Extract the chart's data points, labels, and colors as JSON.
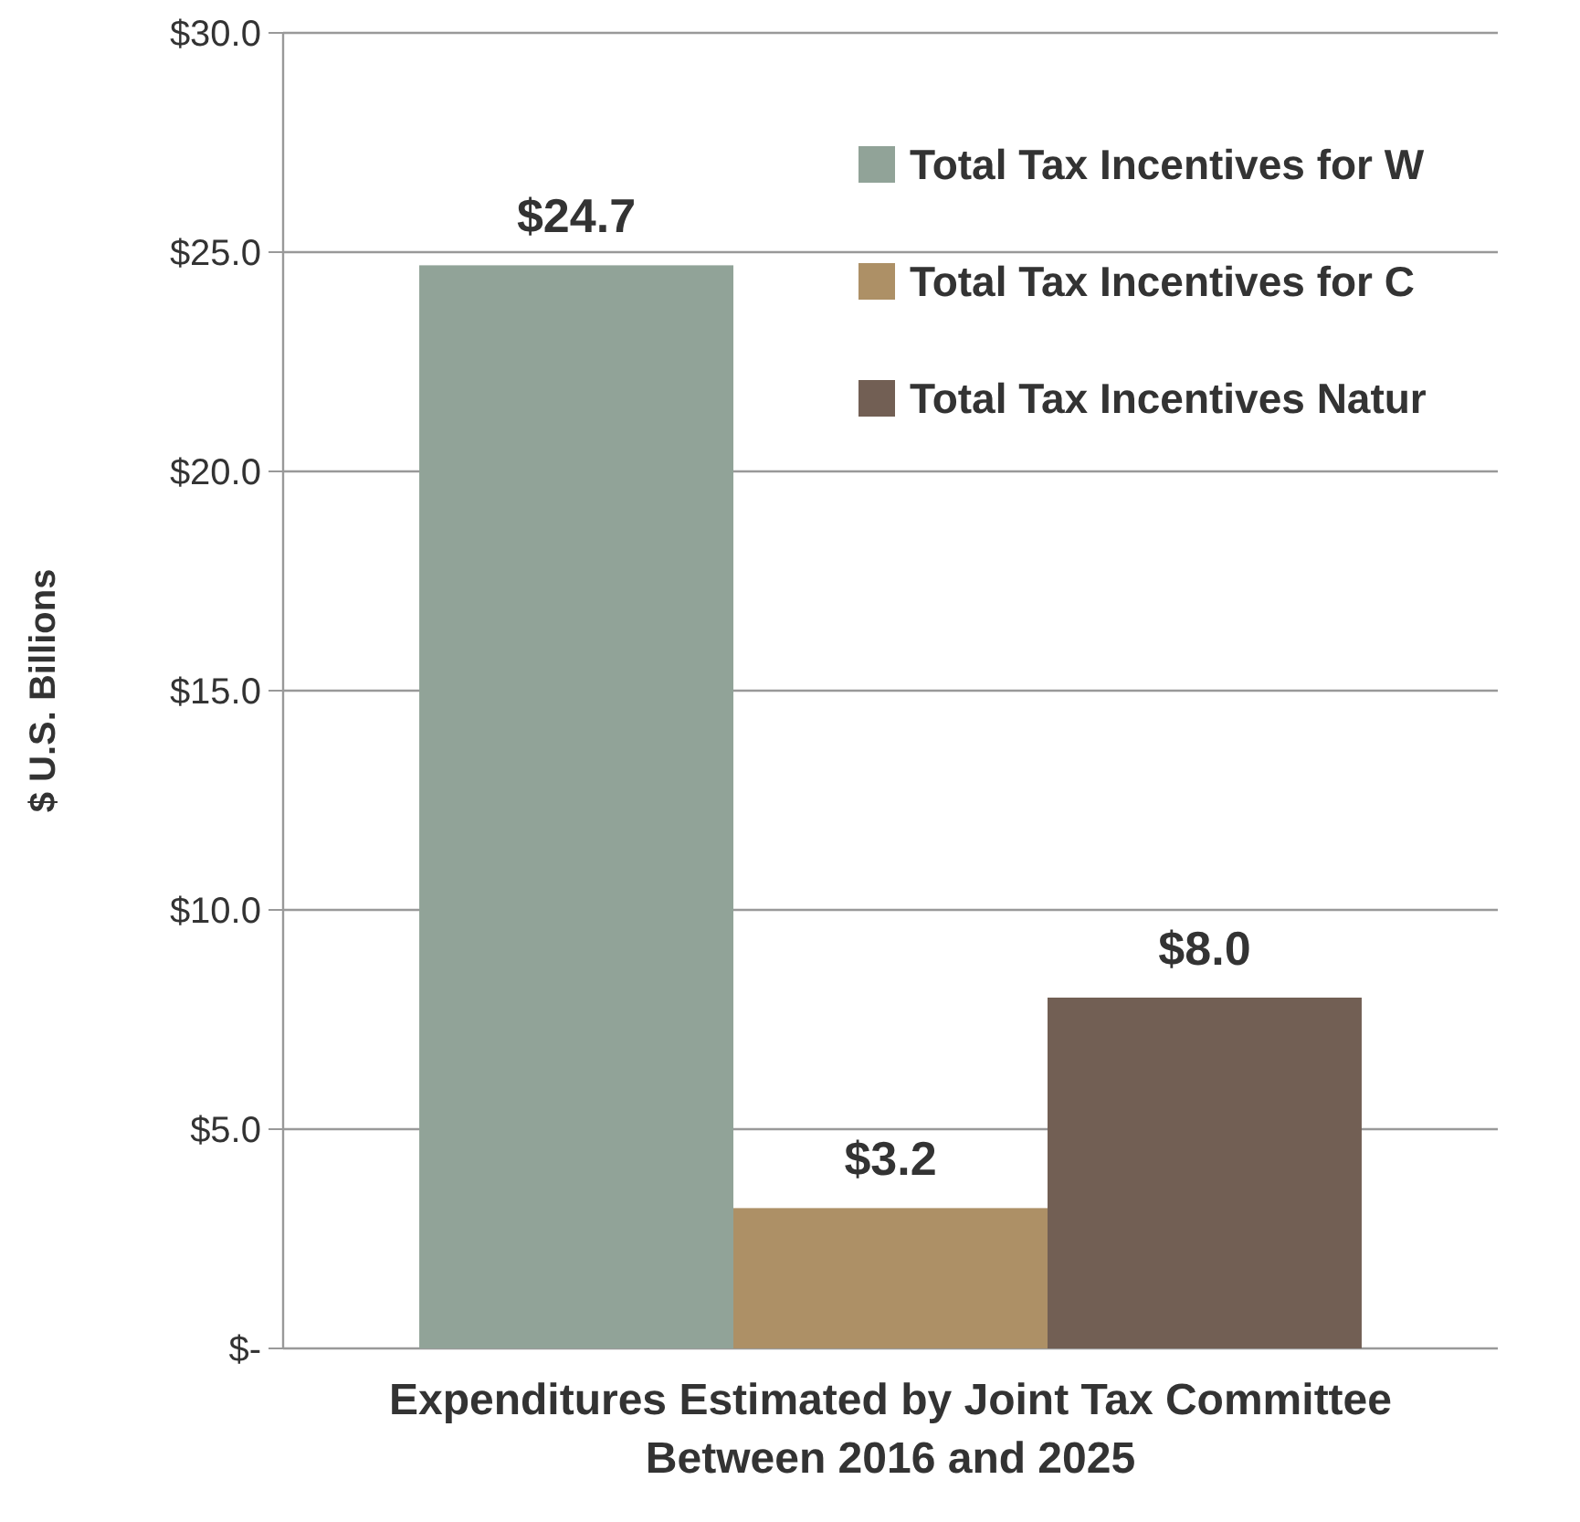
{
  "chart_data": {
    "type": "bar",
    "ylabel": "$ U.S. Billions",
    "categories": [
      "Expenditures Estimated by Joint Tax Committee Between 2016 and 2025"
    ],
    "series": [
      {
        "name": "Total Tax Incentives for W",
        "color": "#91a398",
        "values": [
          24.7
        ],
        "value_labels": [
          "$24.7"
        ]
      },
      {
        "name": "Total Tax Incentives for C",
        "color": "#ad9066",
        "values": [
          3.2
        ],
        "value_labels": [
          "$3.2"
        ]
      },
      {
        "name": "Total Tax Incentives Natur",
        "color": "#725f54",
        "values": [
          8.0
        ],
        "value_labels": [
          "$8.0"
        ]
      }
    ],
    "ylim": [
      0,
      30
    ],
    "yticks": [
      {
        "value": 0,
        "label": "$-"
      },
      {
        "value": 5,
        "label": "$5.0"
      },
      {
        "value": 10,
        "label": "$10.0"
      },
      {
        "value": 15,
        "label": "$15.0"
      },
      {
        "value": 20,
        "label": "$20.0"
      },
      {
        "value": 25,
        "label": "$25.0"
      },
      {
        "value": 30,
        "label": "$30.0"
      }
    ],
    "grid": "y",
    "legend": "top right"
  }
}
